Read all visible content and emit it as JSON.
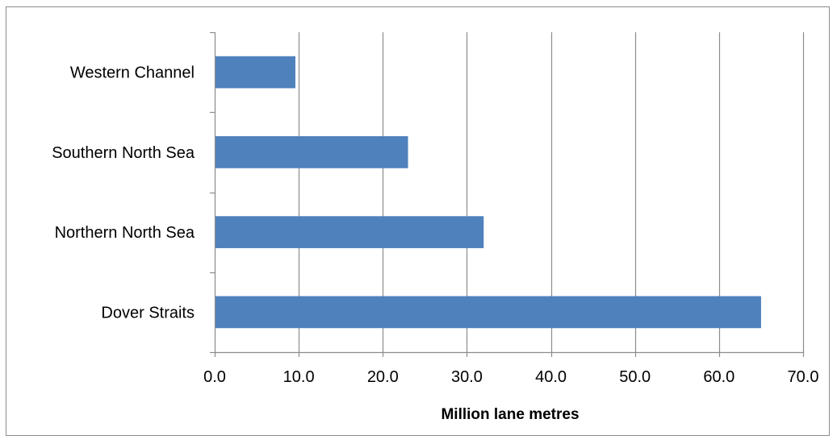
{
  "chart_data": {
    "type": "bar",
    "orientation": "horizontal",
    "categories": [
      "Dover Straits",
      "Northern North Sea",
      "Southern North Sea",
      "Western Channel"
    ],
    "series": [
      {
        "values": [
          65.0,
          32.0,
          23.0,
          9.6
        ],
        "color": "#4f81bd"
      }
    ],
    "xlabel": "Million lane metres",
    "xlim": [
      0,
      70
    ],
    "xticks": [
      "0.0",
      "10.0",
      "20.0",
      "30.0",
      "40.0",
      "50.0",
      "60.0",
      "70.0"
    ],
    "grid": "vertical",
    "legend": "none"
  }
}
